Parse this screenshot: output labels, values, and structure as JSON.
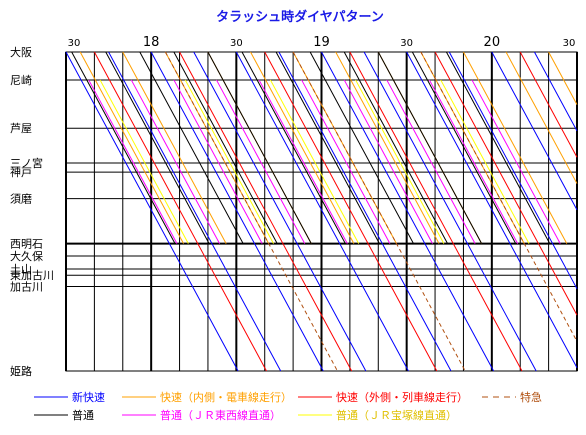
{
  "chart_data": {
    "type": "line",
    "title": "タラッシュ時ダイヤパターン",
    "time_axis": {
      "start": "17:30",
      "end": "20:30",
      "hour_labels": [
        "18",
        "19",
        "20"
      ],
      "minute_labels": [
        "30",
        "30",
        "30",
        "30"
      ],
      "grid_minutes": 10
    },
    "stations": [
      {
        "name": "大阪",
        "km": 0
      },
      {
        "name": "尼崎",
        "km": 7.7
      },
      {
        "name": "芦屋",
        "km": 21.0
      },
      {
        "name": "三ノ宮",
        "km": 30.6
      },
      {
        "name": "神戸",
        "km": 33.1
      },
      {
        "name": "須磨",
        "km": 40.4
      },
      {
        "name": "西明石",
        "km": 52.8
      },
      {
        "name": "大久保",
        "km": 56.2
      },
      {
        "name": "土山",
        "km": 59.8
      },
      {
        "name": "東加古川",
        "km": 61.5
      },
      {
        "name": "加古川",
        "km": 64.6
      },
      {
        "name": "姫路",
        "km": 87.9
      }
    ],
    "series": [
      {
        "name": "新快速",
        "color": "#0000ff",
        "dash": "solid",
        "departures": [
          "17:30",
          "17:45",
          "18:00",
          "18:15",
          "18:30",
          "18:45",
          "19:00",
          "19:15",
          "19:30",
          "19:45",
          "20:00",
          "20:15"
        ],
        "stops": [
          "大阪",
          "尼崎",
          "芦屋",
          "三ノ宮",
          "神戸",
          "西明石",
          "加古川",
          "姫路"
        ]
      },
      {
        "name": "快速（内側・電車線走行）",
        "color": "#ffa000",
        "dash": "solid",
        "departures": [
          "17:35",
          "17:50",
          "18:05",
          "18:20",
          "18:35",
          "18:50",
          "19:05",
          "19:20",
          "19:35",
          "19:50",
          "20:05",
          "20:20"
        ],
        "stops": [
          "大阪",
          "尼崎",
          "芦屋",
          "三ノ宮",
          "神戸",
          "須磨",
          "西明石"
        ]
      },
      {
        "name": "快速（外側・列車線走行）",
        "color": "#ff0000",
        "dash": "solid",
        "departures": [
          "17:40",
          "18:10",
          "18:40",
          "19:10",
          "19:40",
          "20:10"
        ],
        "stops": [
          "大阪",
          "尼崎",
          "芦屋",
          "三ノ宮",
          "神戸",
          "西明石",
          "姫路"
        ]
      },
      {
        "name": "特急",
        "color": "#b05010",
        "dash": "dashed",
        "departures": [
          "18:05",
          "18:50",
          "19:35"
        ],
        "stops": [
          "大阪",
          "三ノ宮",
          "西明石",
          "姫路"
        ]
      },
      {
        "name": "普通",
        "color": "#000000",
        "dash": "solid",
        "departures": [
          "17:32",
          "17:44",
          "17:56",
          "18:08",
          "18:20",
          "18:32",
          "18:44",
          "18:56",
          "19:08",
          "19:20",
          "19:32",
          "19:44"
        ],
        "stops": [
          "大阪",
          "尼崎",
          "芦屋",
          "三ノ宮",
          "神戸",
          "須磨",
          "西明石"
        ]
      },
      {
        "name": "普通（ＪＲ東西線直通）",
        "color": "#ff00ff",
        "dash": "solid",
        "departures": [
          "17:38",
          "17:53",
          "18:08",
          "18:23",
          "18:38",
          "18:53",
          "19:08",
          "19:23",
          "19:38",
          "19:53"
        ],
        "stops": [
          "尼崎",
          "芦屋",
          "三ノ宮",
          "神戸",
          "須磨",
          "西明石"
        ]
      },
      {
        "name": "普通（ＪＲ宝塚線直通）",
        "color": "#ffff00",
        "dash": "solid",
        "departures": [
          "17:42",
          "18:12",
          "18:42",
          "19:12",
          "19:42"
        ],
        "stops": [
          "尼崎",
          "芦屋",
          "三ノ宮",
          "神戸",
          "須磨",
          "西明石"
        ]
      }
    ],
    "legend": [
      {
        "label": "新快速",
        "color": "#0000ff",
        "dash": "solid"
      },
      {
        "label": "快速（内側・電車線走行）",
        "color": "#ffa000",
        "dash": "solid"
      },
      {
        "label": "快速（外側・列車線走行）",
        "color": "#ff0000",
        "dash": "solid"
      },
      {
        "label": "特急",
        "color": "#b05010",
        "dash": "dashed"
      },
      {
        "label": "普通",
        "color": "#000000",
        "dash": "solid"
      },
      {
        "label": "普通（ＪＲ東西線直通）",
        "color": "#ff00ff",
        "dash": "solid"
      },
      {
        "label": "普通（ＪＲ宝塚線直通）",
        "color": "#ffff00",
        "dash": "solid"
      }
    ]
  }
}
